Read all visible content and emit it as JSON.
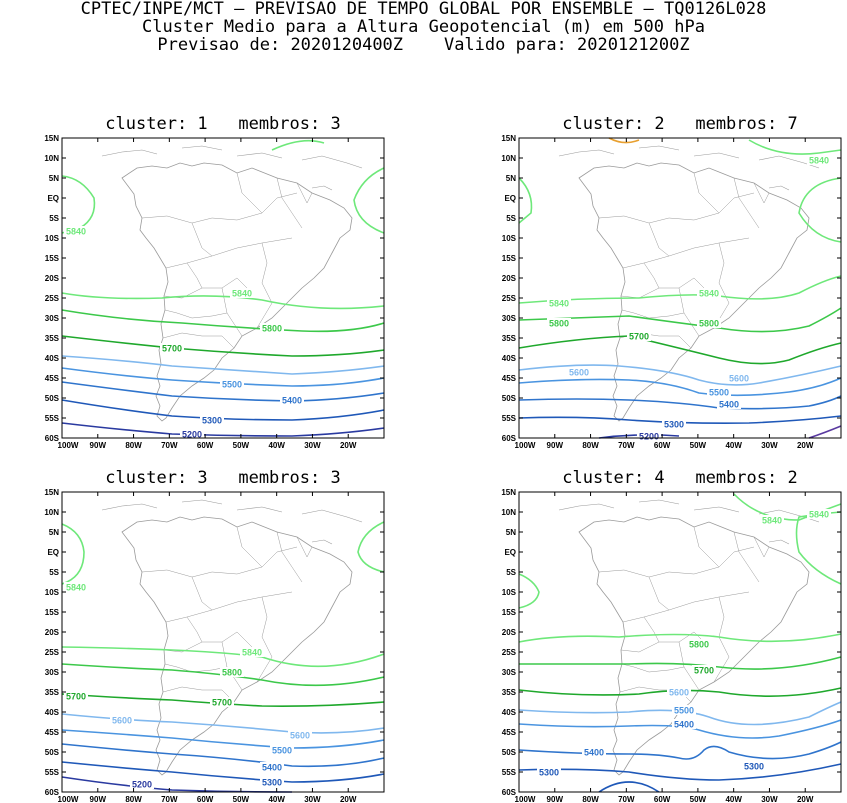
{
  "header": {
    "line1": "CPTEC/INPE/MCT – PREVISAO DE TEMPO GLOBAL POR ENSEMBLE – TQ0126L028",
    "line2": "Cluster Medio para a Altura Geopotencial (m) em 500 hPa",
    "line3": "Previsao de: 2020120400Z    Valido para: 2020121200Z"
  },
  "lat_ticks": [
    "15N",
    "10N",
    "5N",
    "EQ",
    "5S",
    "10S",
    "15S",
    "20S",
    "25S",
    "30S",
    "35S",
    "40S",
    "45S",
    "50S",
    "55S",
    "60S"
  ],
  "lon_ticks": [
    "100W",
    "90W",
    "80W",
    "70W",
    "60W",
    "50W",
    "40W",
    "30W",
    "20W"
  ],
  "colors": {
    "c5840": "#6ee87a",
    "c5800": "#3cc84a",
    "c5700": "#1fa82c",
    "c5600": "#80b8ee",
    "c5500": "#4a94e0",
    "c5400": "#2f74cc",
    "c5300": "#1f58b8",
    "c5200": "#2a3aa0",
    "c5100": "#5a3aa0",
    "c5880": "#e8a030",
    "coast": "#9a9a9a"
  },
  "panels": [
    {
      "title": "cluster: 1   membros: 3",
      "labels": [
        {
          "text": "5840",
          "level": "5840"
        },
        {
          "text": "5840",
          "level": "5840"
        },
        {
          "text": "5800",
          "level": "5800"
        },
        {
          "text": "5700",
          "level": "5700"
        },
        {
          "text": "5500",
          "level": "5500"
        },
        {
          "text": "5400",
          "level": "5400"
        },
        {
          "text": "5300",
          "level": "5300"
        },
        {
          "text": "5200",
          "level": "5200"
        }
      ]
    },
    {
      "title": "cluster: 2   membros: 7",
      "labels": [
        {
          "text": "5840",
          "level": "5840"
        },
        {
          "text": "5840",
          "level": "5840"
        },
        {
          "text": "5840",
          "level": "5840"
        },
        {
          "text": "5800",
          "level": "5800"
        },
        {
          "text": "5800",
          "level": "5800"
        },
        {
          "text": "5700",
          "level": "5700"
        },
        {
          "text": "5600",
          "level": "5600"
        },
        {
          "text": "5600",
          "level": "5600"
        },
        {
          "text": "5500",
          "level": "5500"
        },
        {
          "text": "5400",
          "level": "5400"
        },
        {
          "text": "5300",
          "level": "5300"
        },
        {
          "text": "5200",
          "level": "5200"
        }
      ]
    },
    {
      "title": "cluster: 3   membros: 3",
      "labels": [
        {
          "text": "5840",
          "level": "5840"
        },
        {
          "text": "5840",
          "level": "5840"
        },
        {
          "text": "5800",
          "level": "5800"
        },
        {
          "text": "5700",
          "level": "5700"
        },
        {
          "text": "5700",
          "level": "5700"
        },
        {
          "text": "5600",
          "level": "5600"
        },
        {
          "text": "5600",
          "level": "5600"
        },
        {
          "text": "5500",
          "level": "5500"
        },
        {
          "text": "5400",
          "level": "5400"
        },
        {
          "text": "5300",
          "level": "5300"
        },
        {
          "text": "5200",
          "level": "5200"
        }
      ]
    },
    {
      "title": "cluster: 4   membros: 2",
      "labels": [
        {
          "text": "5840",
          "level": "5840"
        },
        {
          "text": "5840",
          "level": "5840"
        },
        {
          "text": "5800",
          "level": "5800"
        },
        {
          "text": "5700",
          "level": "5700"
        },
        {
          "text": "5600",
          "level": "5600"
        },
        {
          "text": "5500",
          "level": "5500"
        },
        {
          "text": "5400",
          "level": "5400"
        },
        {
          "text": "5400",
          "level": "5400"
        },
        {
          "text": "5300",
          "level": "5300"
        },
        {
          "text": "5300",
          "level": "5300"
        }
      ]
    }
  ]
}
